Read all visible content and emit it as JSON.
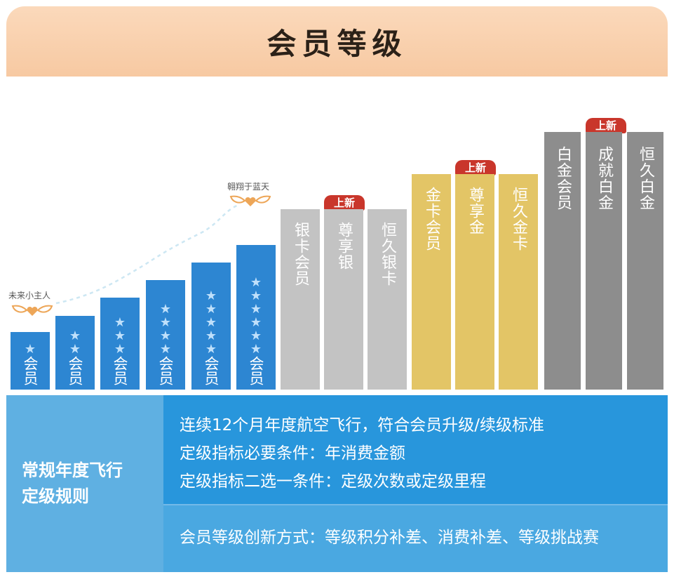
{
  "header": {
    "title": "会员等级"
  },
  "annotations": {
    "start_label": "未来小主人",
    "sky_label": "翱翔于蓝天"
  },
  "badge_text": "上新",
  "blue_tiers": [
    {
      "label": "会员",
      "stars": 1
    },
    {
      "label": "会员",
      "stars": 2
    },
    {
      "label": "会员",
      "stars": 3
    },
    {
      "label": "会员",
      "stars": 4
    },
    {
      "label": "会员",
      "stars": 5
    },
    {
      "label": "会员",
      "stars": 6
    }
  ],
  "silver_tiers": [
    {
      "label": "银卡会员",
      "new": false
    },
    {
      "label": "尊享银",
      "new": true
    },
    {
      "label": "恒久银卡",
      "new": false
    }
  ],
  "gold_tiers": [
    {
      "label": "金卡会员",
      "new": false
    },
    {
      "label": "尊享金",
      "new": true
    },
    {
      "label": "恒久金卡",
      "new": false
    }
  ],
  "platinum_tiers": [
    {
      "label": "白金会员",
      "new": false
    },
    {
      "label": "成就白金",
      "new": true
    },
    {
      "label": "恒久白金",
      "new": false
    }
  ],
  "rules": {
    "title_line1": "常规年度飞行",
    "title_line2": "定级规则",
    "line1": "连续12个月年度航空飞行，符合会员升级/续级标准",
    "line2": "定级指标必要条件：年消费金额",
    "line3": "定级指标二选一条件：定级次数或定级里程",
    "line4": "会员等级创新方式：等级积分补差、消费补差、等级挑战赛"
  },
  "colors": {
    "blue": "#2d86d2",
    "silver": "#c3c3c3",
    "gold": "#e3c566",
    "platinum": "#8d8d8d",
    "badge": "#c9362b",
    "header": "#f7c9a2"
  },
  "icons": {
    "star": "star-icon",
    "wings": "heart-wings-icon"
  }
}
